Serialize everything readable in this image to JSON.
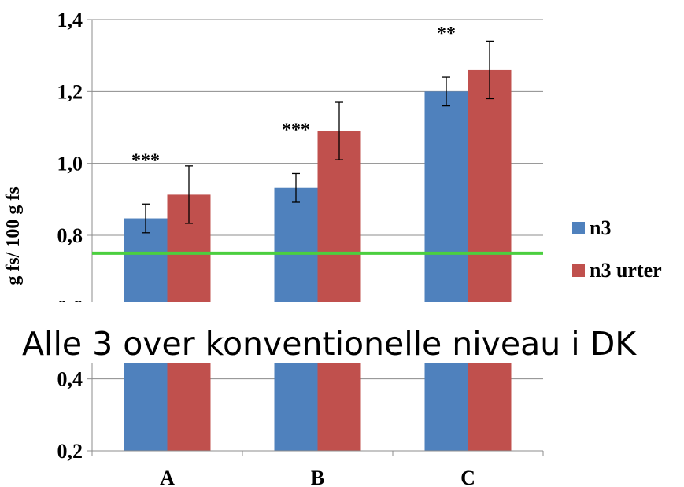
{
  "chart_data": {
    "type": "bar",
    "categories": [
      "A",
      "B",
      "C"
    ],
    "series": [
      {
        "name": "n3",
        "color": "#4F81BD",
        "values": [
          0.847,
          0.932,
          1.2
        ],
        "errors": [
          0.04,
          0.04,
          0.04
        ]
      },
      {
        "name": "n3 urter",
        "color": "#C0504D",
        "values": [
          0.913,
          1.09,
          1.26
        ],
        "errors": [
          0.08,
          0.08,
          0.08
        ]
      }
    ],
    "significance": [
      "***",
      "***",
      "**"
    ],
    "ylabel": "g fs/ 100 g fs",
    "ylim": [
      0.2,
      1.4
    ],
    "yticks": [
      "0,2",
      "0,4",
      "0,6",
      "0,8",
      "1,0",
      "1,2",
      "1,4"
    ],
    "reference_line": {
      "value": 0.75,
      "color": "#4BCF3F"
    },
    "grid": true,
    "legend_position": "right",
    "overlay_text": "Alle 3 over konventionelle niveau i DK"
  }
}
